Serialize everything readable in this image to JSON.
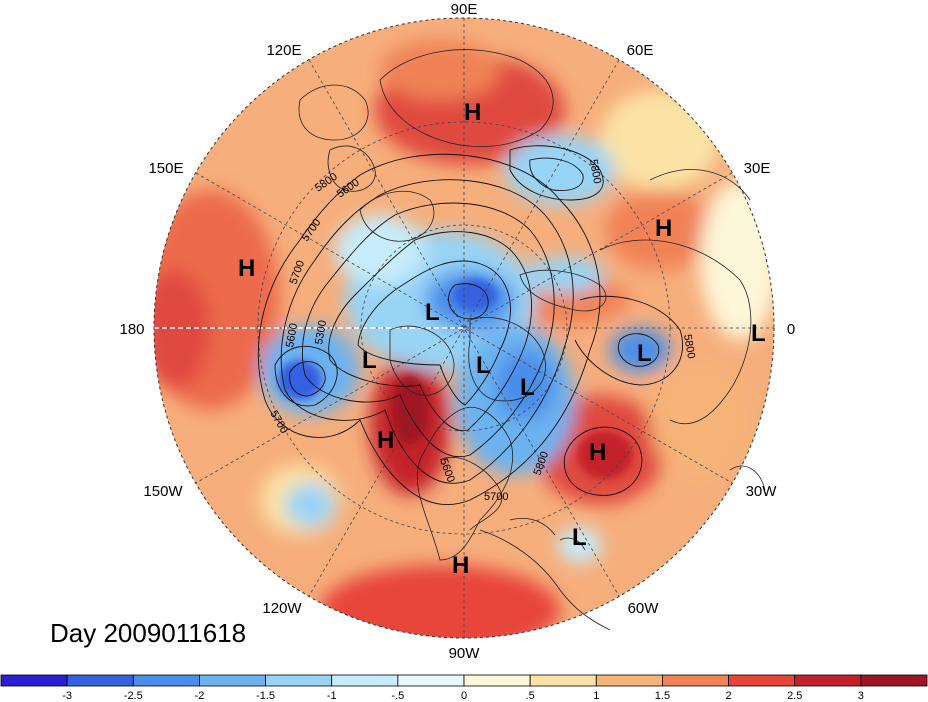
{
  "title": "Day 2009011618",
  "projection": "north-polar-stereographic",
  "longitude_labels": [
    {
      "id": "lon-90e",
      "text": "90E",
      "lon": 90
    },
    {
      "id": "lon-60e",
      "text": "60E",
      "lon": 60
    },
    {
      "id": "lon-30e",
      "text": "30E",
      "lon": 30
    },
    {
      "id": "lon-0",
      "text": "0",
      "lon": 0
    },
    {
      "id": "lon-30w",
      "text": "30W",
      "lon": -30
    },
    {
      "id": "lon-60w",
      "text": "60W",
      "lon": -60
    },
    {
      "id": "lon-90w",
      "text": "90W",
      "lon": -90
    },
    {
      "id": "lon-120w",
      "text": "120W",
      "lon": -120
    },
    {
      "id": "lon-150w",
      "text": "150W",
      "lon": -150
    },
    {
      "id": "lon-180",
      "text": "180",
      "lon": 180
    },
    {
      "id": "lon-150e",
      "text": "150E",
      "lon": 150
    },
    {
      "id": "lon-120e",
      "text": "120E",
      "lon": 120
    }
  ],
  "pressure_centers": [
    {
      "id": "h-siberia",
      "text": "H",
      "type": "high"
    },
    {
      "id": "h-europe",
      "text": "H",
      "type": "high"
    },
    {
      "id": "h-pacific",
      "text": "H",
      "type": "high"
    },
    {
      "id": "h-rockies",
      "text": "H",
      "type": "high"
    },
    {
      "id": "h-atlantic",
      "text": "H",
      "type": "high"
    },
    {
      "id": "h-mexico",
      "text": "H",
      "type": "high"
    },
    {
      "id": "l-arctic",
      "text": "L",
      "type": "low"
    },
    {
      "id": "l-alaska",
      "text": "L",
      "type": "low"
    },
    {
      "id": "l-hudson",
      "text": "L",
      "type": "low"
    },
    {
      "id": "l-labrador",
      "text": "L",
      "type": "low"
    },
    {
      "id": "l-greenland",
      "text": "L",
      "type": "low"
    },
    {
      "id": "l-north-atlantic",
      "text": "L",
      "type": "low"
    },
    {
      "id": "l-edge-east",
      "text": "L",
      "type": "low"
    },
    {
      "id": "l-caribbean",
      "text": "L",
      "type": "low"
    }
  ],
  "contour_labels": [
    {
      "id": "c-5800-a",
      "text": "5800"
    },
    {
      "id": "c-5600-a",
      "text": "5600"
    },
    {
      "id": "c-5700-a",
      "text": "5700"
    },
    {
      "id": "c-5700-b",
      "text": "5700"
    },
    {
      "id": "c-5300",
      "text": "5300"
    },
    {
      "id": "c-5600-b",
      "text": "5600"
    },
    {
      "id": "c-5700-c",
      "text": "5700"
    },
    {
      "id": "c-5800-b",
      "text": "5800"
    },
    {
      "id": "c-5800-c",
      "text": "5800"
    },
    {
      "id": "c-5800-d",
      "text": "5800"
    },
    {
      "id": "c-5600-c",
      "text": "5600"
    },
    {
      "id": "c-5700-d",
      "text": "5700"
    }
  ],
  "colorbar": {
    "ticks": [
      "-3",
      "-2.5",
      "-2",
      "-1.5",
      "-1",
      "-.5",
      "0",
      ".5",
      "1",
      "1.5",
      "2",
      "2.5",
      "3"
    ],
    "colors": [
      "#2b1fd6",
      "#3560e0",
      "#4a8eea",
      "#6cb2f0",
      "#98d4f6",
      "#c7ecfb",
      "#e9f8fd",
      "#fdf6d8",
      "#fbe3a6",
      "#f6b478",
      "#f08256",
      "#e8453a",
      "#c4202b",
      "#a01424"
    ]
  }
}
